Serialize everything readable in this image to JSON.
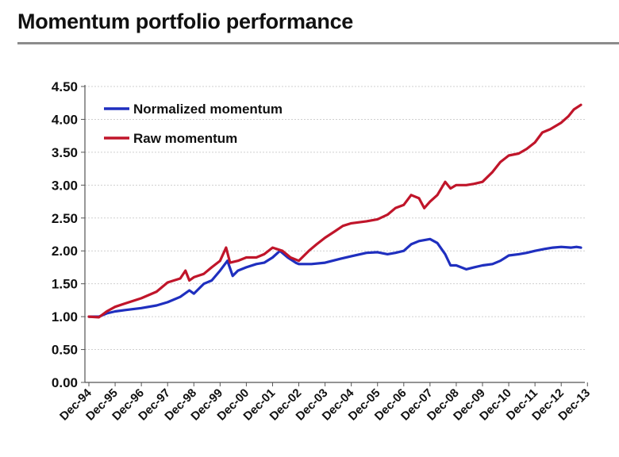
{
  "title": "Momentum portfolio performance",
  "chart_data": {
    "type": "line",
    "title": "Momentum portfolio performance",
    "xlabel": "",
    "ylabel": "",
    "ylim": [
      0,
      4.5
    ],
    "y_ticks": [
      "0.00",
      "0.50",
      "1.00",
      "1.50",
      "2.00",
      "2.50",
      "3.00",
      "3.50",
      "4.00",
      "4.50"
    ],
    "x_ticks": [
      "Dec-94",
      "Dec-95",
      "Dec-96",
      "Dec-97",
      "Dec-98",
      "Dec-99",
      "Dec-00",
      "Dec-01",
      "Dec-02",
      "Dec-03",
      "Dec-04",
      "Dec-05",
      "Dec-06",
      "Dec-07",
      "Dec-08",
      "Dec-09",
      "Dec-10",
      "Dec-11",
      "Dec-12",
      "Dec-13"
    ],
    "grid": true,
    "legend_position": "top-left",
    "series": [
      {
        "name": "Normalized momentum",
        "color": "#1f2fbf",
        "points": [
          [
            1994.92,
            1.0
          ],
          [
            1995.3,
            1.0
          ],
          [
            1995.6,
            1.05
          ],
          [
            1995.92,
            1.08
          ],
          [
            1996.3,
            1.1
          ],
          [
            1996.92,
            1.13
          ],
          [
            1997.5,
            1.17
          ],
          [
            1997.92,
            1.22
          ],
          [
            1998.4,
            1.3
          ],
          [
            1998.75,
            1.4
          ],
          [
            1998.92,
            1.35
          ],
          [
            1999.3,
            1.5
          ],
          [
            1999.6,
            1.55
          ],
          [
            1999.92,
            1.7
          ],
          [
            2000.2,
            1.85
          ],
          [
            2000.4,
            1.62
          ],
          [
            2000.6,
            1.7
          ],
          [
            2000.92,
            1.75
          ],
          [
            2001.3,
            1.8
          ],
          [
            2001.6,
            1.82
          ],
          [
            2001.92,
            1.9
          ],
          [
            2002.2,
            2.0
          ],
          [
            2002.5,
            1.9
          ],
          [
            2002.8,
            1.82
          ],
          [
            2002.92,
            1.8
          ],
          [
            2003.4,
            1.8
          ],
          [
            2003.92,
            1.82
          ],
          [
            2004.5,
            1.88
          ],
          [
            2004.92,
            1.92
          ],
          [
            2005.5,
            1.97
          ],
          [
            2005.92,
            1.98
          ],
          [
            2006.3,
            1.95
          ],
          [
            2006.6,
            1.97
          ],
          [
            2006.92,
            2.0
          ],
          [
            2007.2,
            2.1
          ],
          [
            2007.5,
            2.15
          ],
          [
            2007.92,
            2.18
          ],
          [
            2008.2,
            2.12
          ],
          [
            2008.5,
            1.95
          ],
          [
            2008.7,
            1.78
          ],
          [
            2008.92,
            1.78
          ],
          [
            2009.3,
            1.72
          ],
          [
            2009.6,
            1.75
          ],
          [
            2009.92,
            1.78
          ],
          [
            2010.3,
            1.8
          ],
          [
            2010.6,
            1.85
          ],
          [
            2010.92,
            1.93
          ],
          [
            2011.3,
            1.95
          ],
          [
            2011.6,
            1.97
          ],
          [
            2011.92,
            2.0
          ],
          [
            2012.3,
            2.03
          ],
          [
            2012.6,
            2.05
          ],
          [
            2012.92,
            2.06
          ],
          [
            2013.3,
            2.05
          ],
          [
            2013.5,
            2.06
          ],
          [
            2013.67,
            2.05
          ]
        ]
      },
      {
        "name": "Raw momentum",
        "color": "#c0152a",
        "points": [
          [
            1994.92,
            1.0
          ],
          [
            1995.3,
            0.99
          ],
          [
            1995.6,
            1.08
          ],
          [
            1995.92,
            1.15
          ],
          [
            1996.3,
            1.2
          ],
          [
            1996.92,
            1.28
          ],
          [
            1997.5,
            1.38
          ],
          [
            1997.92,
            1.52
          ],
          [
            1998.4,
            1.58
          ],
          [
            1998.6,
            1.7
          ],
          [
            1998.75,
            1.55
          ],
          [
            1998.92,
            1.6
          ],
          [
            1999.3,
            1.65
          ],
          [
            1999.6,
            1.75
          ],
          [
            1999.92,
            1.85
          ],
          [
            2000.15,
            2.05
          ],
          [
            2000.3,
            1.82
          ],
          [
            2000.6,
            1.85
          ],
          [
            2000.92,
            1.9
          ],
          [
            2001.3,
            1.9
          ],
          [
            2001.6,
            1.95
          ],
          [
            2001.92,
            2.05
          ],
          [
            2002.3,
            2.0
          ],
          [
            2002.6,
            1.9
          ],
          [
            2002.92,
            1.85
          ],
          [
            2003.3,
            2.0
          ],
          [
            2003.6,
            2.1
          ],
          [
            2003.92,
            2.2
          ],
          [
            2004.3,
            2.3
          ],
          [
            2004.6,
            2.38
          ],
          [
            2004.92,
            2.42
          ],
          [
            2005.5,
            2.45
          ],
          [
            2005.92,
            2.48
          ],
          [
            2006.3,
            2.55
          ],
          [
            2006.6,
            2.65
          ],
          [
            2006.92,
            2.7
          ],
          [
            2007.2,
            2.85
          ],
          [
            2007.5,
            2.8
          ],
          [
            2007.7,
            2.65
          ],
          [
            2007.92,
            2.75
          ],
          [
            2008.2,
            2.85
          ],
          [
            2008.5,
            3.05
          ],
          [
            2008.7,
            2.95
          ],
          [
            2008.92,
            3.0
          ],
          [
            2009.3,
            3.0
          ],
          [
            2009.6,
            3.02
          ],
          [
            2009.92,
            3.05
          ],
          [
            2010.3,
            3.2
          ],
          [
            2010.6,
            3.35
          ],
          [
            2010.92,
            3.45
          ],
          [
            2011.3,
            3.48
          ],
          [
            2011.6,
            3.55
          ],
          [
            2011.92,
            3.65
          ],
          [
            2012.2,
            3.8
          ],
          [
            2012.5,
            3.85
          ],
          [
            2012.92,
            3.95
          ],
          [
            2013.2,
            4.05
          ],
          [
            2013.4,
            4.15
          ],
          [
            2013.67,
            4.22
          ]
        ]
      }
    ]
  }
}
